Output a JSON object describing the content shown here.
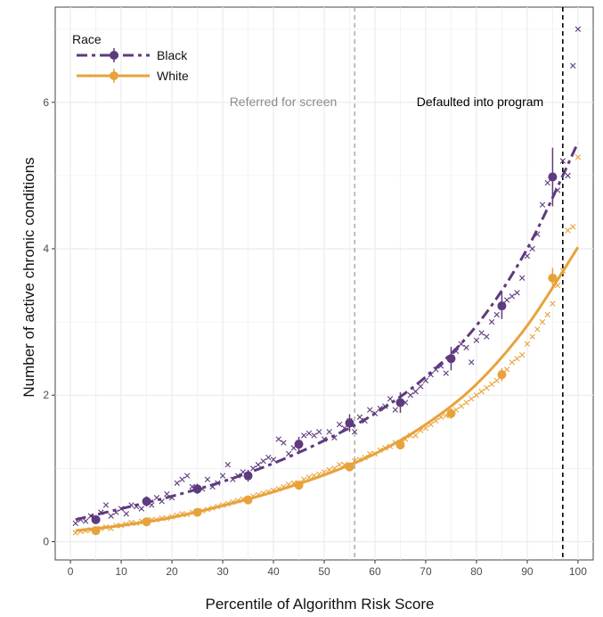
{
  "chart_data": {
    "type": "scatter",
    "title": "",
    "xlabel": "Percentile of Algorithm Risk Score",
    "ylabel": "Number of active chronic conditions",
    "xlim": [
      -3,
      103
    ],
    "ylim": [
      -0.25,
      7.3
    ],
    "x_ticks": [
      "0",
      "10",
      "20",
      "30",
      "40",
      "50",
      "60",
      "70",
      "80",
      "90",
      "100"
    ],
    "y_ticks": [
      "0",
      "2",
      "4",
      "6"
    ],
    "grid": true,
    "legend": {
      "title": "Race",
      "position": "top-left"
    },
    "annotations": [
      {
        "label": "Referred for screen",
        "x": 56,
        "color": "#a6a6a6"
      },
      {
        "label": "Defaulted into program",
        "x": 97,
        "color": "#000000"
      }
    ],
    "series": [
      {
        "name": "Black",
        "color": "#5e3a7e",
        "line_style": "dashed",
        "binned_means": {
          "x": [
            5,
            15,
            25,
            35,
            45,
            55,
            65,
            75,
            85,
            95
          ],
          "y": [
            0.3,
            0.55,
            0.72,
            0.9,
            1.33,
            1.62,
            1.9,
            2.5,
            3.22,
            4.98
          ],
          "err": [
            0.06,
            0.07,
            0.07,
            0.08,
            0.1,
            0.12,
            0.14,
            0.16,
            0.18,
            0.4
          ]
        },
        "fit": {
          "x": [
            1,
            10,
            20,
            30,
            40,
            50,
            60,
            70,
            80,
            90,
            100
          ],
          "y": [
            0.3,
            0.45,
            0.62,
            0.82,
            1.07,
            1.38,
            1.75,
            2.25,
            2.95,
            4.0,
            5.45
          ]
        },
        "percentile_points": {
          "x": [
            1,
            2,
            3,
            4,
            5,
            6,
            7,
            8,
            9,
            10,
            11,
            12,
            13,
            14,
            15,
            16,
            17,
            18,
            19,
            20,
            21,
            22,
            23,
            24,
            25,
            26,
            27,
            28,
            29,
            30,
            31,
            32,
            33,
            34,
            35,
            36,
            37,
            38,
            39,
            40,
            41,
            42,
            43,
            44,
            45,
            46,
            47,
            48,
            49,
            50,
            51,
            52,
            53,
            54,
            55,
            56,
            57,
            58,
            59,
            60,
            61,
            62,
            63,
            64,
            65,
            66,
            67,
            68,
            69,
            70,
            71,
            72,
            73,
            74,
            75,
            76,
            77,
            78,
            79,
            80,
            81,
            82,
            83,
            84,
            85,
            86,
            87,
            88,
            89,
            90,
            91,
            92,
            93,
            94,
            95,
            96,
            97,
            98,
            99,
            100
          ],
          "y": [
            0.25,
            0.3,
            0.28,
            0.35,
            0.3,
            0.4,
            0.5,
            0.35,
            0.4,
            0.45,
            0.38,
            0.5,
            0.48,
            0.45,
            0.55,
            0.5,
            0.6,
            0.55,
            0.65,
            0.6,
            0.8,
            0.85,
            0.9,
            0.75,
            0.7,
            0.72,
            0.85,
            0.75,
            0.8,
            0.9,
            1.05,
            0.85,
            0.9,
            0.95,
            0.88,
            1.0,
            1.05,
            1.1,
            1.15,
            1.12,
            1.4,
            1.35,
            1.2,
            1.28,
            1.35,
            1.45,
            1.48,
            1.45,
            1.5,
            1.4,
            1.5,
            1.42,
            1.6,
            1.55,
            1.65,
            1.5,
            1.7,
            1.65,
            1.8,
            1.75,
            1.82,
            1.85,
            1.95,
            1.8,
            1.88,
            1.9,
            2.0,
            2.05,
            2.12,
            2.2,
            2.28,
            2.35,
            2.4,
            2.3,
            2.5,
            2.6,
            2.7,
            2.65,
            2.45,
            2.75,
            2.85,
            2.8,
            3.0,
            3.1,
            3.2,
            3.3,
            3.35,
            3.4,
            3.6,
            3.9,
            4.0,
            4.2,
            4.6,
            4.9,
            5.0,
            4.8,
            5.2,
            5.0,
            6.5,
            7.0
          ]
        }
      },
      {
        "name": "White",
        "color": "#e8a23b",
        "line_style": "solid",
        "binned_means": {
          "x": [
            5,
            15,
            25,
            35,
            45,
            55,
            65,
            75,
            85,
            95
          ],
          "y": [
            0.15,
            0.27,
            0.4,
            0.57,
            0.77,
            1.02,
            1.32,
            1.75,
            2.28,
            3.6
          ],
          "err": [
            0.03,
            0.03,
            0.04,
            0.04,
            0.05,
            0.05,
            0.06,
            0.07,
            0.09,
            0.14
          ]
        },
        "fit": {
          "x": [
            1,
            10,
            20,
            30,
            40,
            50,
            60,
            70,
            80,
            90,
            100
          ],
          "y": [
            0.15,
            0.22,
            0.33,
            0.49,
            0.68,
            0.91,
            1.2,
            1.6,
            2.15,
            2.95,
            4.02
          ]
        },
        "percentile_points": {
          "x": [
            1,
            2,
            3,
            4,
            5,
            6,
            7,
            8,
            9,
            10,
            11,
            12,
            13,
            14,
            15,
            16,
            17,
            18,
            19,
            20,
            21,
            22,
            23,
            24,
            25,
            26,
            27,
            28,
            29,
            30,
            31,
            32,
            33,
            34,
            35,
            36,
            37,
            38,
            39,
            40,
            41,
            42,
            43,
            44,
            45,
            46,
            47,
            48,
            49,
            50,
            51,
            52,
            53,
            54,
            55,
            56,
            57,
            58,
            59,
            60,
            61,
            62,
            63,
            64,
            65,
            66,
            67,
            68,
            69,
            70,
            71,
            72,
            73,
            74,
            75,
            76,
            77,
            78,
            79,
            80,
            81,
            82,
            83,
            84,
            85,
            86,
            87,
            88,
            89,
            90,
            91,
            92,
            93,
            94,
            95,
            96,
            97,
            98,
            99,
            100
          ],
          "y": [
            0.12,
            0.14,
            0.15,
            0.16,
            0.17,
            0.18,
            0.2,
            0.18,
            0.22,
            0.22,
            0.24,
            0.26,
            0.25,
            0.28,
            0.28,
            0.3,
            0.3,
            0.32,
            0.32,
            0.34,
            0.36,
            0.38,
            0.37,
            0.4,
            0.4,
            0.42,
            0.44,
            0.46,
            0.48,
            0.5,
            0.52,
            0.54,
            0.56,
            0.58,
            0.58,
            0.62,
            0.64,
            0.66,
            0.68,
            0.7,
            0.72,
            0.75,
            0.78,
            0.8,
            0.8,
            0.85,
            0.88,
            0.9,
            0.92,
            0.95,
            0.98,
            1.0,
            1.05,
            1.05,
            1.05,
            1.1,
            1.12,
            1.15,
            1.2,
            1.2,
            1.25,
            1.28,
            1.3,
            1.35,
            1.35,
            1.4,
            1.45,
            1.45,
            1.52,
            1.55,
            1.6,
            1.65,
            1.7,
            1.72,
            1.75,
            1.8,
            1.85,
            1.9,
            1.95,
            2.0,
            2.05,
            2.1,
            2.15,
            2.2,
            2.3,
            2.35,
            2.45,
            2.5,
            2.55,
            2.7,
            2.8,
            2.9,
            3.0,
            3.1,
            3.25,
            3.5,
            3.7,
            4.25,
            4.3,
            5.25
          ]
        }
      }
    ]
  }
}
